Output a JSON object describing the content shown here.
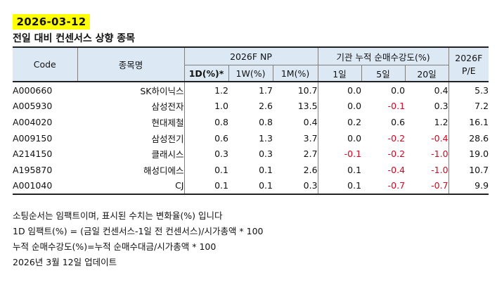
{
  "date_badge": "2026-03-12",
  "subtitle": "전일 대비 컨센서스 상향 종목",
  "table": {
    "headers": {
      "code": "Code",
      "name": "종목명",
      "np_group": "2026F NP",
      "inst_group": "기관 누적 순매수강도(%)",
      "pe_line1": "2026F",
      "pe_line2": "P/E",
      "np_1d": "1D(%)*",
      "np_1w": "1W(%)",
      "np_1m": "1M(%)",
      "inst_1d": "1일",
      "inst_5d": "5일",
      "inst_20d": "20일"
    },
    "rows": [
      {
        "code": "A000660",
        "name": "SK하이닉스",
        "np_1d": "1.2",
        "np_1w": "1.7",
        "np_1m": "10.7",
        "inst_1d": "0.0",
        "inst_5d": "0.0",
        "inst_20d": "0.4",
        "pe": "5.3"
      },
      {
        "code": "A005930",
        "name": "삼성전자",
        "np_1d": "1.0",
        "np_1w": "2.6",
        "np_1m": "13.5",
        "inst_1d": "0.0",
        "inst_5d": "-0.1",
        "inst_20d": "0.3",
        "pe": "7.2"
      },
      {
        "code": "A004020",
        "name": "현대제철",
        "np_1d": "0.8",
        "np_1w": "0.8",
        "np_1m": "0.4",
        "inst_1d": "0.2",
        "inst_5d": "0.6",
        "inst_20d": "1.2",
        "pe": "16.1"
      },
      {
        "code": "A009150",
        "name": "삼성전기",
        "np_1d": "0.6",
        "np_1w": "1.3",
        "np_1m": "3.7",
        "inst_1d": "0.0",
        "inst_5d": "-0.2",
        "inst_20d": "-0.4",
        "pe": "28.6"
      },
      {
        "code": "A214150",
        "name": "클래시스",
        "np_1d": "0.3",
        "np_1w": "0.3",
        "np_1m": "2.7",
        "inst_1d": "-0.1",
        "inst_5d": "-0.2",
        "inst_20d": "-1.0",
        "pe": "19.0"
      },
      {
        "code": "A195870",
        "name": "해성디에스",
        "np_1d": "0.1",
        "np_1w": "0.1",
        "np_1m": "2.6",
        "inst_1d": "0.1",
        "inst_5d": "-0.4",
        "inst_20d": "-1.0",
        "pe": "10.7"
      },
      {
        "code": "A001040",
        "name": "CJ",
        "np_1d": "0.1",
        "np_1w": "0.1",
        "np_1m": "0.3",
        "inst_1d": "0.1",
        "inst_5d": "-0.7",
        "inst_20d": "-0.7",
        "pe": "9.9"
      }
    ]
  },
  "notes": [
    "소팅순서는 임팩트이며, 표시된 수치는 변화율(%) 입니다",
    "1D 임팩트(%) = (금일 컨센서스-1일 전 컨센서스)/시가총액 * 100",
    "누적 순매수강도(%)=누적 순매수대금/시가총액 * 100",
    "2026년 3월 12일 업데이트"
  ],
  "colors": {
    "date_highlight": "#ffff00",
    "header_bg": "#dce9f5",
    "negative_text": "#e0001b"
  }
}
